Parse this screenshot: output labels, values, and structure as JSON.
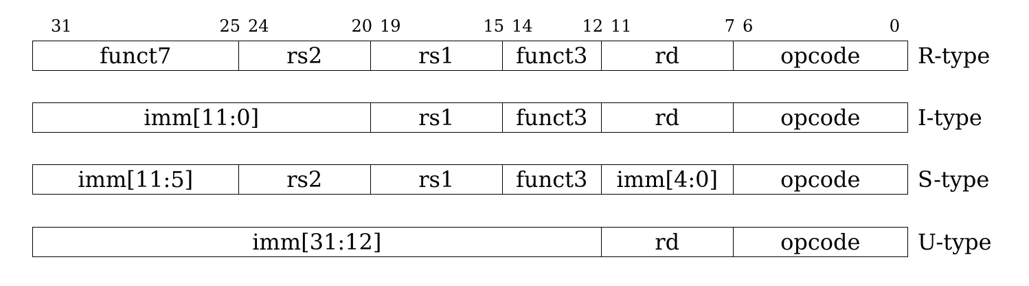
{
  "bit_labels": [
    {
      "id": "b31",
      "text": "31"
    },
    {
      "id": "b25",
      "text": "25"
    },
    {
      "id": "b24",
      "text": "24"
    },
    {
      "id": "b20",
      "text": "20"
    },
    {
      "id": "b19",
      "text": "19"
    },
    {
      "id": "b15",
      "text": "15"
    },
    {
      "id": "b14",
      "text": "14"
    },
    {
      "id": "b12",
      "text": "12"
    },
    {
      "id": "b11",
      "text": "11"
    },
    {
      "id": "b7",
      "text": "7"
    },
    {
      "id": "b6",
      "text": "6"
    },
    {
      "id": "b0",
      "text": "0"
    }
  ],
  "formats": [
    {
      "type": "R-type",
      "fields": [
        {
          "label": "funct7",
          "hi": 31,
          "lo": 25
        },
        {
          "label": "rs2",
          "hi": 24,
          "lo": 20
        },
        {
          "label": "rs1",
          "hi": 19,
          "lo": 15
        },
        {
          "label": "funct3",
          "hi": 14,
          "lo": 12
        },
        {
          "label": "rd",
          "hi": 11,
          "lo": 7
        },
        {
          "label": "opcode",
          "hi": 6,
          "lo": 0
        }
      ]
    },
    {
      "type": "I-type",
      "fields": [
        {
          "label": "imm[11:0]",
          "hi": 31,
          "lo": 20
        },
        {
          "label": "rs1",
          "hi": 19,
          "lo": 15
        },
        {
          "label": "funct3",
          "hi": 14,
          "lo": 12
        },
        {
          "label": "rd",
          "hi": 11,
          "lo": 7
        },
        {
          "label": "opcode",
          "hi": 6,
          "lo": 0
        }
      ]
    },
    {
      "type": "S-type",
      "fields": [
        {
          "label": "imm[11:5]",
          "hi": 31,
          "lo": 25
        },
        {
          "label": "rs2",
          "hi": 24,
          "lo": 20
        },
        {
          "label": "rs1",
          "hi": 19,
          "lo": 15
        },
        {
          "label": "funct3",
          "hi": 14,
          "lo": 12
        },
        {
          "label": "imm[4:0]",
          "hi": 11,
          "lo": 7
        },
        {
          "label": "opcode",
          "hi": 6,
          "lo": 0
        }
      ]
    },
    {
      "type": "U-type",
      "fields": [
        {
          "label": "imm[31:12]",
          "hi": 31,
          "lo": 12
        },
        {
          "label": "rd",
          "hi": 11,
          "lo": 7
        },
        {
          "label": "opcode",
          "hi": 6,
          "lo": 0
        }
      ]
    }
  ]
}
